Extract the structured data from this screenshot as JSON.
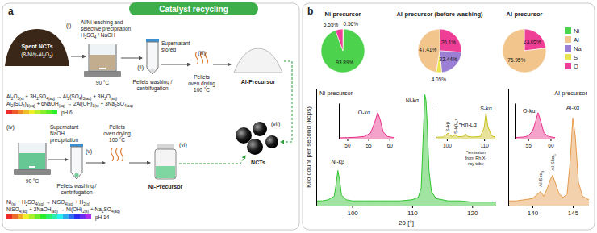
{
  "header": {
    "title": "Catalyst recycling"
  },
  "panel_a": {
    "letter": "a",
    "step_i": "(i)",
    "spent": [
      "Spent NCTs",
      "(8-Ni/γ-Al2O3)"
    ],
    "leaching": [
      "Al/Ni leaching and",
      "selective precipitation",
      "H2SO4 / NaOH"
    ],
    "temp_1": "90 °C",
    "supernatant_stored": [
      "Supernatant",
      "stored"
    ],
    "step_ii": "(ii)",
    "washing_1": [
      "Pellets washing /",
      "centrifugation"
    ],
    "step_iii": "(iii)",
    "drying_1": [
      "Pellets",
      "oven drying",
      "100 °C"
    ],
    "al_precursor": "Al-Precursor",
    "equations_al": [
      "Al2O3(s) + 3H2SO4(aq) → Al2(SO4)3(aq) + 3H2O(aq)",
      "Al2(SO4)3(aq) + 6NaOH(aq) → 2Al(OH)3(s) + 3Na2SO4(aq)"
    ],
    "ph_al": "pH 6",
    "step_vii": "(vii)",
    "ncts": "NCTs",
    "step_iv": "(iv)",
    "supernatant": [
      "Supernatant",
      "NaOH",
      "precipitation"
    ],
    "temp_2": "90 °C",
    "step_v": "(v)",
    "washing_2": [
      "Pellets washing /",
      "centrifugation"
    ],
    "drying_2": [
      "Pellets",
      "oven drying",
      "100 °C"
    ],
    "step_vi": "(vi)",
    "ni_precursor": "Ni-Precursor",
    "equations_ni": [
      "Ni(s) + H2SO4(aq) → NiSO4(aq) + H2(g)",
      "NiSO4(aq) + 2NaOH(aq) → Ni(OH)2(s) + Na2SO4(aq)"
    ],
    "ph_ni": "pH 14"
  },
  "panel_b": {
    "letter": "b",
    "legend": "top-right",
    "legend_items": [
      {
        "name": "Ni",
        "color": "#4cd24c"
      },
      {
        "name": "Al",
        "color": "#f1c58c"
      },
      {
        "name": "Na",
        "color": "#9b7fd4"
      },
      {
        "name": "S",
        "color": "#ece552"
      },
      {
        "name": "O",
        "color": "#ef3e96"
      }
    ]
  },
  "chart_data": [
    {
      "type": "pie",
      "title": "Ni-precursor",
      "categories": [
        "S",
        "Ni",
        "O"
      ],
      "values": [
        0.56,
        93.89,
        5.55
      ],
      "value_labels": [
        "0.56%",
        "93.89%",
        "5.55%"
      ],
      "data_labels": true
    },
    {
      "type": "pie",
      "title": "Al-precursor (before washing)",
      "categories": [
        "O",
        "Na",
        "S",
        "Al"
      ],
      "values": [
        26.1,
        22.44,
        4.05,
        47.41
      ],
      "value_labels": [
        "26.1%",
        "22.44%",
        "4.05%",
        "47.41%"
      ],
      "data_labels": true
    },
    {
      "type": "pie",
      "title": "Al-precursor",
      "categories": [
        "O",
        "Al"
      ],
      "values": [
        23.05,
        76.95
      ],
      "value_labels": [
        "23.05%",
        "76.95%"
      ],
      "data_labels": true
    },
    {
      "type": "area",
      "title": "Ni-precursor",
      "color": "#2fc42f",
      "x": [
        94,
        95,
        96,
        97,
        97.3,
        97.6,
        97.9,
        98.2,
        99,
        100,
        102,
        104,
        106,
        108,
        110,
        111,
        111.5,
        111.8,
        112.1,
        112.3,
        112.5,
        112.8,
        113.2,
        114,
        116,
        118,
        120,
        122,
        124
      ],
      "values": [
        4,
        4,
        5,
        8,
        18,
        30,
        22,
        9,
        5,
        4,
        4,
        4,
        4,
        4,
        5,
        7,
        15,
        55,
        95,
        90,
        70,
        30,
        12,
        6,
        4,
        4,
        3,
        3,
        3
      ],
      "xlim": [
        94,
        124
      ],
      "xticks": [
        100,
        110,
        120
      ],
      "ylim": [
        0,
        100
      ],
      "tick_labels": "x",
      "x_label": "2θ [°]",
      "y_label": "Kilo count per second (kcps)",
      "annotations": [
        {
          "text": "Ni-kβ",
          "x": 97.6,
          "y": 36
        },
        {
          "text": "Ni-kα",
          "x": 110,
          "y": 88
        }
      ]
    },
    {
      "type": "area",
      "color": "#e8308a",
      "x": [
        48,
        50,
        52,
        54,
        55.5,
        56.5,
        57.2,
        57.8,
        58.5,
        59.5,
        61
      ],
      "values": [
        3,
        4,
        5,
        8,
        20,
        60,
        95,
        70,
        25,
        8,
        4
      ],
      "xlim": [
        48,
        61
      ],
      "xticks": [
        50,
        55,
        60
      ],
      "ylim": [
        0,
        130
      ],
      "tick_labels": "x",
      "annotations": [
        {
          "text": "O-kα",
          "x": 54,
          "y": 90
        }
      ]
    },
    {
      "type": "area",
      "color": "#c9c01e",
      "x": [
        97,
        99,
        100.3,
        100.8,
        101.5,
        102.3,
        103,
        104.5,
        105,
        105.6,
        107,
        109,
        110,
        110.5,
        111,
        112,
        113
      ],
      "values": [
        5,
        6,
        20,
        12,
        8,
        14,
        7,
        8,
        18,
        8,
        6,
        8,
        40,
        95,
        45,
        10,
        6
      ],
      "xlim": [
        97,
        113
      ],
      "xticks": [
        100,
        110
      ],
      "ylim": [
        0,
        130
      ],
      "tick_labels": "x",
      "annotations": [
        {
          "text": "S-kβ",
          "x": 100.3,
          "y": 26,
          "orientation": "vertical"
        },
        {
          "text": "S-kβ5,x",
          "x": 102.3,
          "y": 18,
          "orientation": "vertical"
        },
        {
          "text": "*Rh-Lα",
          "x": 105.6,
          "y": 45
        },
        {
          "text": "S-kα",
          "x": 110.5,
          "y": 104
        }
      ],
      "note": [
        "*emission",
        "from Rh X-",
        "ray tube"
      ]
    },
    {
      "type": "area",
      "title": "Al-precursor",
      "color": "#e59a4a",
      "x": [
        137,
        138,
        139,
        140,
        140.5,
        141,
        141.4,
        141.8,
        142.2,
        142.5,
        142.9,
        143.3,
        143.8,
        144.3,
        144.7,
        145,
        145.3,
        145.7,
        146.2,
        147
      ],
      "values": [
        4,
        4,
        5,
        6,
        9,
        12,
        8,
        14,
        22,
        26,
        18,
        10,
        7,
        10,
        40,
        75,
        60,
        20,
        8,
        5
      ],
      "xlim": [
        137,
        147
      ],
      "xticks": [
        140,
        145
      ],
      "ylim": [
        0,
        100
      ],
      "tick_labels": "x",
      "annotations": [
        {
          "text": "Al-Skα3",
          "x": 141,
          "y": 16,
          "orientation": "vertical"
        },
        {
          "text": "Al-Skα5",
          "x": 142.5,
          "y": 30,
          "orientation": "vertical"
        },
        {
          "text": "Al-kα",
          "x": 145,
          "y": 82
        }
      ]
    },
    {
      "type": "area",
      "color": "#e8308a",
      "x": [
        52,
        53,
        54,
        55,
        56,
        56.6,
        57.2,
        57.8,
        58.5,
        59.5,
        61
      ],
      "values": [
        4,
        5,
        6,
        10,
        28,
        60,
        95,
        65,
        22,
        8,
        4
      ],
      "xlim": [
        52,
        61
      ],
      "xticks": [
        55,
        60
      ],
      "ylim": [
        0,
        130
      ],
      "tick_labels": "x",
      "annotations": [
        {
          "text": "O-kα",
          "x": 55.2,
          "y": 95
        }
      ]
    }
  ]
}
